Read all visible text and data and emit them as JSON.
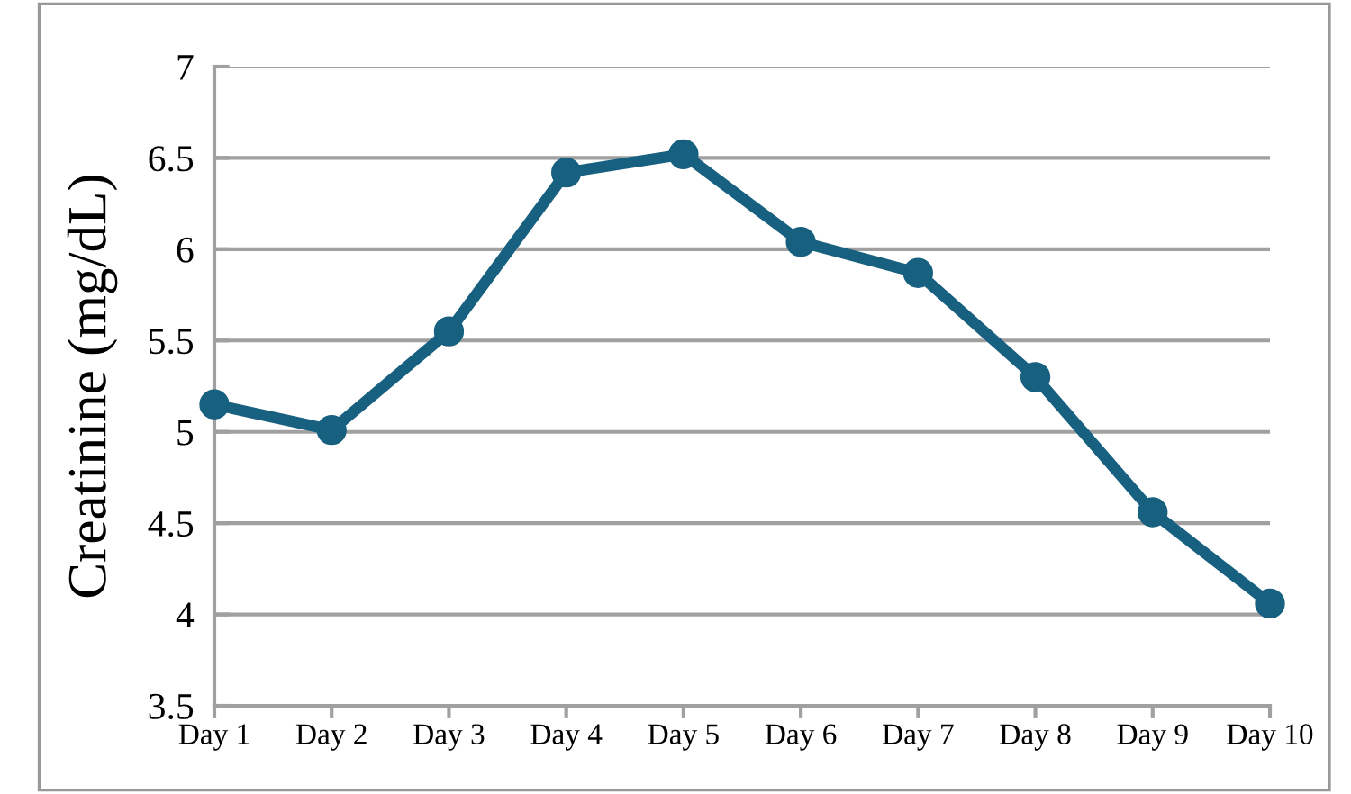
{
  "chart_data": {
    "type": "line",
    "ylabel": "Creatinine (mg/dL)",
    "categories": [
      "Day 1",
      "Day 2",
      "Day 3",
      "Day 4",
      "Day 5",
      "Day 6",
      "Day 7",
      "Day 8",
      "Day 9",
      "Day 10"
    ],
    "series": [
      {
        "color": "#17607f",
        "values": [
          5.15,
          5.01,
          5.55,
          6.42,
          6.52,
          6.04,
          5.87,
          5.3,
          4.56,
          4.06
        ]
      }
    ],
    "ylim": [
      3.5,
      7
    ],
    "yticks": [
      3.5,
      4,
      4.5,
      5,
      5.5,
      6,
      6.5,
      7
    ],
    "grid": "y",
    "marker": "circle",
    "line_style": "solid"
  }
}
